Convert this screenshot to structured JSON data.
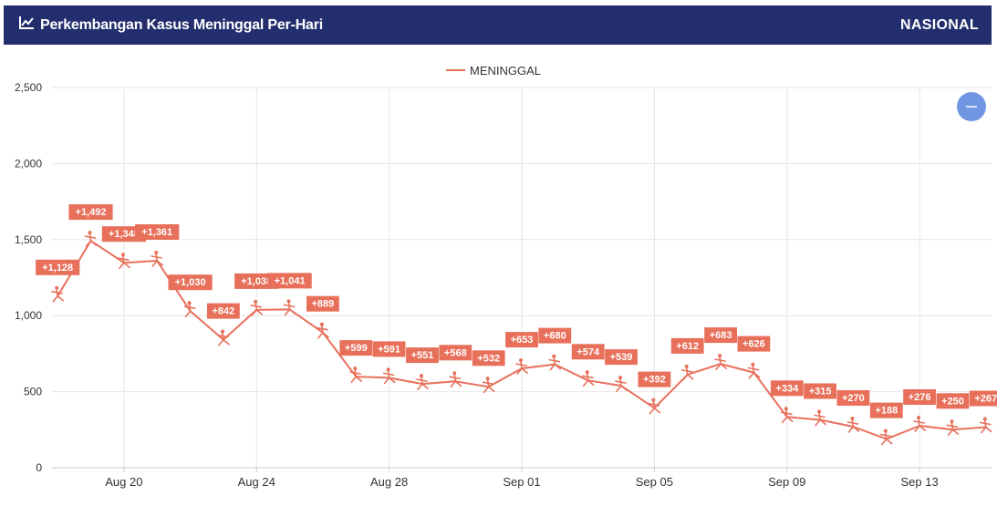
{
  "header": {
    "title": "Perkembangan Kasus Meninggal Per-Hari",
    "badge": "NASIONAL",
    "icon": "line-chart-icon"
  },
  "zoom_button": {
    "icon": "minus-icon"
  },
  "colors": {
    "header_bg": "#232e6e",
    "series": "#e8705b",
    "zoom_button": "#6f95e3",
    "grid": "#e6e6e6",
    "axis_text": "#333333"
  },
  "chart_data": {
    "type": "line",
    "legend": {
      "position": "top-center"
    },
    "grid": true,
    "ylim": [
      0,
      2500
    ],
    "y_ticks": [
      0,
      500,
      1000,
      1500,
      2000,
      2500
    ],
    "y_tick_labels": [
      "0",
      "500",
      "1,000",
      "1,500",
      "2,000",
      "2,500"
    ],
    "x_tick_labels": [
      "Aug 20",
      "Aug 24",
      "Aug 28",
      "Sep 01",
      "Sep 05",
      "Sep 09",
      "Sep 13"
    ],
    "x_tick_dates": [
      "2021-08-20",
      "2021-08-24",
      "2021-08-28",
      "2021-09-01",
      "2021-09-05",
      "2021-09-09",
      "2021-09-13"
    ],
    "x_range": [
      "2021-08-18",
      "2021-09-15"
    ],
    "x": [
      "2021-08-18",
      "2021-08-19",
      "2021-08-20",
      "2021-08-21",
      "2021-08-22",
      "2021-08-23",
      "2021-08-24",
      "2021-08-25",
      "2021-08-26",
      "2021-08-27",
      "2021-08-28",
      "2021-08-29",
      "2021-08-30",
      "2021-08-31",
      "2021-09-01",
      "2021-09-02",
      "2021-09-03",
      "2021-09-04",
      "2021-09-05",
      "2021-09-06",
      "2021-09-07",
      "2021-09-08",
      "2021-09-09",
      "2021-09-10",
      "2021-09-11",
      "2021-09-12",
      "2021-09-13",
      "2021-09-14",
      "2021-09-15"
    ],
    "series": [
      {
        "name": "MENINGGAL",
        "values": [
          1128,
          1492,
          1348,
          1361,
          1030,
          842,
          1038,
          1041,
          889,
          599,
          591,
          551,
          568,
          532,
          653,
          680,
          574,
          539,
          392,
          612,
          683,
          626,
          334,
          315,
          270,
          188,
          276,
          250,
          267
        ],
        "labels": [
          "+1,128",
          "+1,492",
          "+1,348",
          "+1,361",
          "+1,030",
          "+842",
          "+1,038",
          "+1,041",
          "+889",
          "+599",
          "+591",
          "+551",
          "+568",
          "+532",
          "+653",
          "+680",
          "+574",
          "+539",
          "+392",
          "+612",
          "+683",
          "+626",
          "+334",
          "+315",
          "+270",
          "+188",
          "+276",
          "+250",
          "+267"
        ]
      }
    ]
  }
}
